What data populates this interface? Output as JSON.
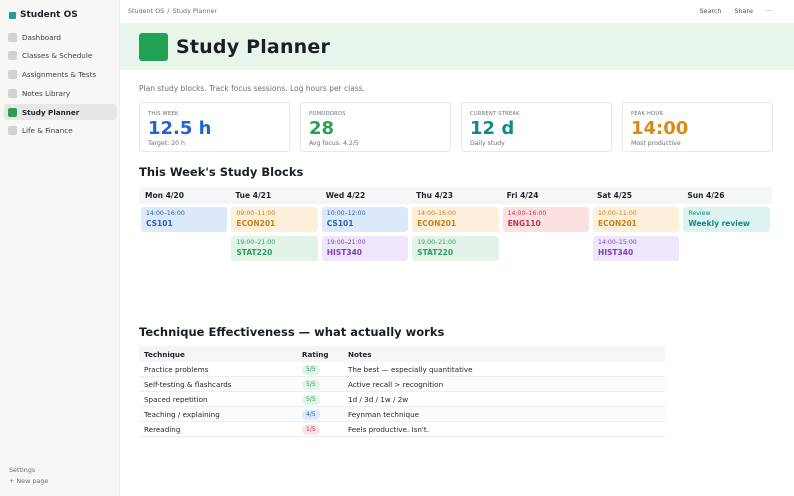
{
  "app": {
    "name": "Student OS"
  },
  "sidebar": {
    "items": [
      {
        "label": "Dashboard",
        "active": false
      },
      {
        "label": "Classes & Schedule",
        "active": false
      },
      {
        "label": "Assignments & Tests",
        "active": false
      },
      {
        "label": "Notes Library",
        "active": false
      },
      {
        "label": "Study Planner",
        "active": true
      },
      {
        "label": "Life & Finance",
        "active": false
      }
    ],
    "settings_label": "Settings",
    "new_page_label": "+  New page"
  },
  "topbar": {
    "breadcrumb": [
      "Student OS",
      "Study Planner"
    ],
    "breadcrumb_sep": "/",
    "search_label": "Search",
    "share_label": "Share",
    "more_label": "···"
  },
  "page": {
    "title": "Study Planner",
    "description": "Plan study blocks. Track focus sessions. Log hours per class."
  },
  "stats": [
    {
      "label": "THIS WEEK",
      "value": "12.5 h",
      "sub": "Target: 20 h",
      "color": "#2563c9"
    },
    {
      "label": "POMODOROS",
      "value": "28",
      "sub": "Avg focus: 4.2/5",
      "color": "#2e9e57"
    },
    {
      "label": "CURRENT STREAK",
      "value": "12 d",
      "sub": "Daily study",
      "color": "#138a8a"
    },
    {
      "label": "PEAK HOUR",
      "value": "14:00",
      "sub": "Most productive",
      "color": "#d98a14"
    }
  ],
  "week": {
    "title": "This Week's Study Blocks",
    "days": [
      {
        "label": "Mon 4/20",
        "blocks": [
          {
            "time": "14:00–16:00",
            "course": "CS101",
            "bg": "#dce9fb",
            "fg": "#2b5fb3"
          }
        ]
      },
      {
        "label": "Tue 4/21",
        "blocks": [
          {
            "time": "09:00–11:00",
            "course": "ECON201",
            "bg": "#fdefd9",
            "fg": "#c7801a"
          },
          {
            "time": "19:00–21:00",
            "course": "STAT220",
            "bg": "#e2f4e8",
            "fg": "#2e9e57"
          }
        ]
      },
      {
        "label": "Wed 4/22",
        "blocks": [
          {
            "time": "10:00–12:00",
            "course": "CS101",
            "bg": "#dce9fb",
            "fg": "#2b5fb3"
          },
          {
            "time": "19:00–21:00",
            "course": "HIST340",
            "bg": "#f0e6fb",
            "fg": "#7a3fb8"
          }
        ]
      },
      {
        "label": "Thu 4/23",
        "blocks": [
          {
            "time": "14:00–16:00",
            "course": "ECON201",
            "bg": "#fdefd9",
            "fg": "#c7801a"
          },
          {
            "time": "19:00–21:00",
            "course": "STAT220",
            "bg": "#e2f4e8",
            "fg": "#2e9e57"
          }
        ]
      },
      {
        "label": "Fri 4/24",
        "blocks": [
          {
            "time": "14:00–16:00",
            "course": "ENG110",
            "bg": "#fce1e3",
            "fg": "#c2334a"
          }
        ]
      },
      {
        "label": "Sat 4/25",
        "blocks": [
          {
            "time": "10:00–11:00",
            "course": "ECON201",
            "bg": "#fdefd9",
            "fg": "#c7801a"
          },
          {
            "time": "14:00–15:00",
            "course": "HIST340",
            "bg": "#f0e6fb",
            "fg": "#7a3fb8"
          }
        ]
      },
      {
        "label": "Sun 4/26",
        "blocks": [
          {
            "time": "Review",
            "course": "Weekly review",
            "bg": "#dcf3ef",
            "fg": "#138a8a"
          }
        ]
      }
    ]
  },
  "techniques": {
    "title": "Technique Effectiveness — what actually works",
    "headers": [
      "Technique",
      "Rating",
      "Notes"
    ],
    "rows": [
      {
        "technique": "Practice problems",
        "rating": "5/5",
        "notes": "The best — especially quantitative",
        "pill_bg": "#e2f4e8",
        "pill_fg": "#2e9e57"
      },
      {
        "technique": "Self-testing & flashcards",
        "rating": "5/5",
        "notes": "Active recall > recognition",
        "pill_bg": "#e2f4e8",
        "pill_fg": "#2e9e57"
      },
      {
        "technique": "Spaced repetition",
        "rating": "5/5",
        "notes": "1d / 3d / 1w / 2w",
        "pill_bg": "#e2f4e8",
        "pill_fg": "#2e9e57"
      },
      {
        "technique": "Teaching / explaining",
        "rating": "4/5",
        "notes": "Feynman technique",
        "pill_bg": "#dce9fb",
        "pill_fg": "#2b5fb3"
      },
      {
        "technique": "Rereading",
        "rating": "1/5",
        "notes": "Feels productive. Isn't.",
        "pill_bg": "#fce1e3",
        "pill_fg": "#c2334a"
      }
    ]
  }
}
